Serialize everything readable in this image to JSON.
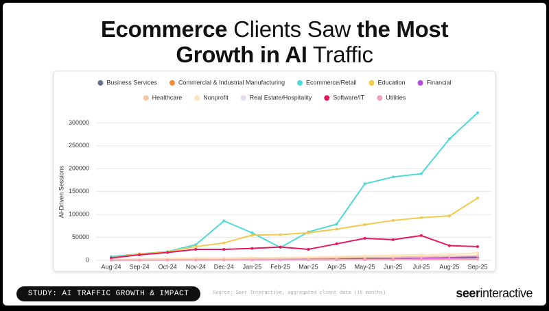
{
  "chart_data": {
    "type": "line",
    "title": [
      "Ecommerce",
      " Clients Saw ",
      "the Most",
      "Growth in AI",
      " Traffic"
    ],
    "y_label": "AI-Driven Sessions",
    "categories": [
      "Aug-24",
      "Sep-24",
      "Oct-24",
      "Nov-24",
      "Dec-24",
      "Jan-25",
      "Feb-25",
      "Mar-25",
      "Apr-25",
      "May-25",
      "Jun-25",
      "Jul-25",
      "Aug-25",
      "Sep-25"
    ],
    "ylim": [
      0,
      320000
    ],
    "yticks": [
      0,
      50000,
      100000,
      150000,
      200000,
      250000,
      300000
    ],
    "grid": true,
    "legend": "top",
    "series": [
      {
        "name": "Business Services",
        "color": "#6b6f8e",
        "values": [
          1000,
          1500,
          2000,
          2500,
          2500,
          3000,
          3000,
          3000,
          3500,
          4000,
          4000,
          4500,
          5000,
          5500
        ]
      },
      {
        "name": "Commercial & Industrial Manufacturing",
        "color": "#f28c38",
        "values": [
          500,
          800,
          1000,
          1200,
          1300,
          1500,
          1600,
          1700,
          1900,
          2200,
          2400,
          2600,
          2800,
          3000
        ]
      },
      {
        "name": "Ecommerce/Retail",
        "color": "#4fd8d8",
        "values": [
          8000,
          14000,
          19000,
          34000,
          86000,
          60000,
          28000,
          62000,
          79000,
          167000,
          182000,
          189000,
          265000,
          322000
        ]
      },
      {
        "name": "Education",
        "color": "#f2c94c",
        "values": [
          5000,
          14000,
          18000,
          30000,
          38000,
          55000,
          56000,
          60000,
          68000,
          78000,
          87000,
          93000,
          97000,
          136000
        ]
      },
      {
        "name": "Financial",
        "color": "#b44be1",
        "values": [
          500,
          700,
          900,
          1000,
          1200,
          1500,
          1700,
          2000,
          2500,
          3000,
          3500,
          4500,
          6000,
          8000
        ]
      },
      {
        "name": "Healthcare",
        "color": "#f8c6a4",
        "values": [
          1000,
          2000,
          2500,
          3000,
          3500,
          4000,
          4500,
          5000,
          5500,
          6500,
          7000,
          8000,
          9000,
          10000
        ]
      },
      {
        "name": "Nonprofit",
        "color": "#fde3b8",
        "values": [
          2000,
          3000,
          4000,
          5000,
          5000,
          6000,
          6000,
          7000,
          8000,
          10000,
          11000,
          12000,
          13000,
          16000
        ]
      },
      {
        "name": "Real Estate/Hospitality",
        "color": "#e6daf0",
        "values": [
          500,
          600,
          700,
          800,
          900,
          1000,
          1100,
          1200,
          1300,
          1500,
          1700,
          1900,
          2100,
          2400
        ]
      },
      {
        "name": "Software/IT",
        "color": "#e8185c",
        "values": [
          5000,
          12000,
          17000,
          24000,
          24000,
          26000,
          29000,
          24000,
          36000,
          48000,
          45000,
          54000,
          32000,
          30000
        ]
      },
      {
        "name": "Utilities",
        "color": "#f4a0b8",
        "values": [
          300,
          400,
          500,
          600,
          700,
          800,
          900,
          1000,
          1100,
          1300,
          1400,
          1600,
          1800,
          2000
        ]
      }
    ]
  },
  "footer": {
    "study": "STUDY: AI TRAFFIC GROWTH & IMPACT",
    "source": "Source: Seer Interactive, aggregated client data (16 months)",
    "logo_bold": "seer",
    "logo_rest": "interactive"
  }
}
